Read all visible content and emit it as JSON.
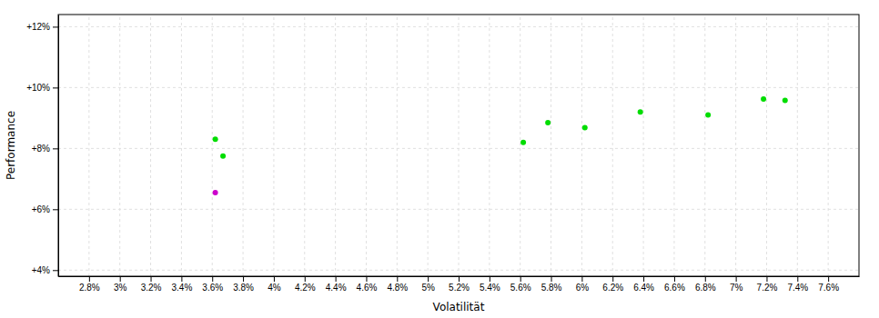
{
  "chart_data": {
    "type": "scatter",
    "xlabel": "Volatilität",
    "ylabel": "Performance",
    "xlim": [
      2.6,
      7.8
    ],
    "ylim": [
      3.8,
      12.4
    ],
    "xticks": [
      {
        "value": 2.8,
        "label": "2.8%"
      },
      {
        "value": 3.0,
        "label": "3%"
      },
      {
        "value": 3.2,
        "label": "3.2%"
      },
      {
        "value": 3.4,
        "label": "3.4%"
      },
      {
        "value": 3.6,
        "label": "3.6%"
      },
      {
        "value": 3.8,
        "label": "3.8%"
      },
      {
        "value": 4.0,
        "label": "4%"
      },
      {
        "value": 4.2,
        "label": "4.2%"
      },
      {
        "value": 4.4,
        "label": "4.4%"
      },
      {
        "value": 4.6,
        "label": "4.6%"
      },
      {
        "value": 4.8,
        "label": "4.8%"
      },
      {
        "value": 5.0,
        "label": "5%"
      },
      {
        "value": 5.2,
        "label": "5.2%"
      },
      {
        "value": 5.4,
        "label": "5.4%"
      },
      {
        "value": 5.6,
        "label": "5.6%"
      },
      {
        "value": 5.8,
        "label": "5.8%"
      },
      {
        "value": 6.0,
        "label": "6%"
      },
      {
        "value": 6.2,
        "label": "6.2%"
      },
      {
        "value": 6.4,
        "label": "6.4%"
      },
      {
        "value": 6.6,
        "label": "6.6%"
      },
      {
        "value": 6.8,
        "label": "6.8%"
      },
      {
        "value": 7.0,
        "label": "7%"
      },
      {
        "value": 7.2,
        "label": "7.2%"
      },
      {
        "value": 7.4,
        "label": "7.4%"
      },
      {
        "value": 7.6,
        "label": "7.6%"
      }
    ],
    "yticks": [
      {
        "value": 4,
        "label": "+4%"
      },
      {
        "value": 6,
        "label": "+6%"
      },
      {
        "value": 8,
        "label": "+8%"
      },
      {
        "value": 10,
        "label": "+10%"
      },
      {
        "value": 12,
        "label": "+12%"
      }
    ],
    "grid": true,
    "series": [
      {
        "color": "#00dd00",
        "marker": "circle",
        "x": [
          3.62,
          3.67,
          5.62,
          5.78,
          6.02,
          6.38,
          6.82,
          7.18,
          7.32
        ],
        "values": [
          8.3,
          7.75,
          8.2,
          8.85,
          8.68,
          9.2,
          9.1,
          9.62,
          9.58
        ]
      },
      {
        "color": "#cc00cc",
        "marker": "circle",
        "x": [
          3.62
        ],
        "values": [
          6.55
        ]
      }
    ]
  }
}
